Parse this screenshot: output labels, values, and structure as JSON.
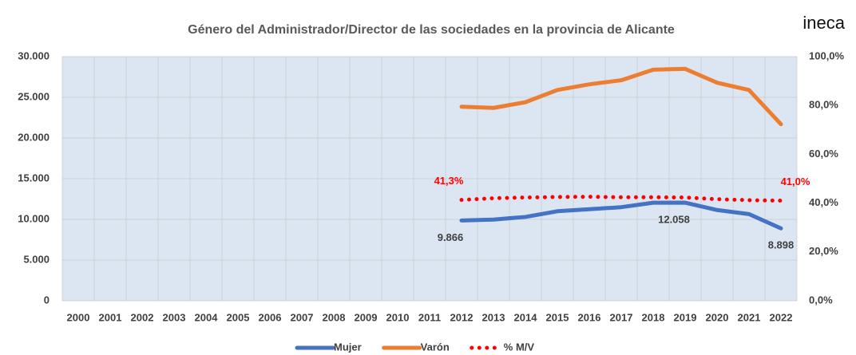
{
  "chart_data": {
    "type": "line",
    "title": "Género del Administrador/Director de las sociedades en la provincia de Alicante",
    "logo": "ineca",
    "categories": [
      "2000",
      "2001",
      "2002",
      "2003",
      "2004",
      "2005",
      "2006",
      "2007",
      "2008",
      "2009",
      "2010",
      "2011",
      "2012",
      "2013",
      "2014",
      "2015",
      "2016",
      "2017",
      "2018",
      "2019",
      "2020",
      "2021",
      "2022"
    ],
    "series": [
      {
        "name": "Mujer",
        "color": "#4472c4",
        "style": "solid",
        "values": [
          null,
          null,
          null,
          null,
          null,
          null,
          null,
          null,
          null,
          null,
          null,
          null,
          9866,
          9980,
          10300,
          11000,
          11250,
          11500,
          12050,
          12058,
          11150,
          10650,
          8898
        ],
        "value_labels": [
          null,
          null,
          null,
          null,
          null,
          null,
          null,
          null,
          null,
          null,
          null,
          null,
          "9.866",
          null,
          null,
          null,
          null,
          null,
          null,
          "12.058",
          null,
          null,
          "8.898"
        ]
      },
      {
        "name": "Varón",
        "color": "#ed7d31",
        "style": "solid",
        "values": [
          null,
          null,
          null,
          null,
          null,
          null,
          null,
          null,
          null,
          null,
          null,
          null,
          23850,
          23700,
          24400,
          25900,
          26600,
          27100,
          28400,
          28500,
          26800,
          25900,
          21700
        ]
      },
      {
        "name": "% M/V",
        "color": "#ff0000",
        "style": "dotted",
        "axis": "y2",
        "values": [
          null,
          null,
          null,
          null,
          null,
          null,
          null,
          null,
          null,
          null,
          null,
          null,
          41.3,
          42,
          42.3,
          42.5,
          42.6,
          42.4,
          42.4,
          42.3,
          41.6,
          41.2,
          41.0
        ],
        "value_labels": [
          null,
          null,
          null,
          null,
          null,
          null,
          null,
          null,
          null,
          null,
          null,
          null,
          "41,3%",
          null,
          null,
          null,
          null,
          null,
          null,
          null,
          null,
          null,
          "41,0%"
        ]
      }
    ],
    "ylim": [
      0,
      30000
    ],
    "yticks": [
      0,
      {
        "value": 5000,
        "label": "5.000"
      },
      {
        "value": 10000,
        "label": "10.000"
      },
      {
        "value": 15000,
        "label": "15.000"
      },
      {
        "value": 20000,
        "label": "20.000"
      },
      {
        "value": 25000,
        "label": "25.000"
      },
      {
        "value": 30000,
        "label": "30.000"
      }
    ],
    "y2lim": [
      0,
      100
    ],
    "y2ticks": [
      {
        "value": 0,
        "label": "0,0%"
      },
      {
        "value": 20,
        "label": "20,0%"
      },
      {
        "value": 40,
        "label": "40,0%"
      },
      {
        "value": 60,
        "label": "60,0%"
      },
      {
        "value": 80,
        "label": "80,0%"
      },
      {
        "value": 100,
        "label": "100,0%"
      }
    ],
    "legend": "bottom"
  }
}
